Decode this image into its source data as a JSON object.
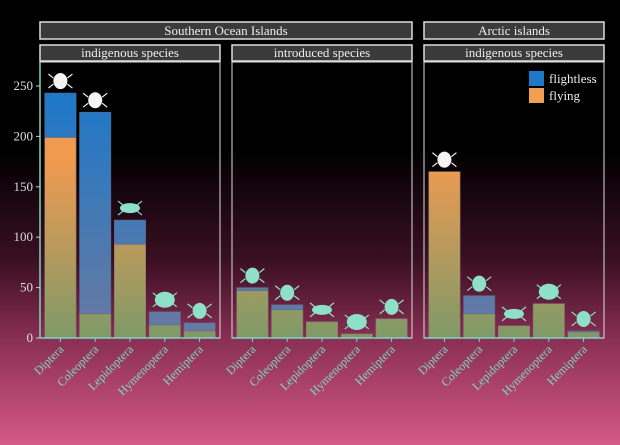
{
  "chart_data": {
    "type": "bar",
    "stacked": true,
    "ylim": [
      0,
      275
    ],
    "yticks": [
      0,
      50,
      100,
      150,
      200,
      250
    ],
    "categories": [
      "Diptera",
      "Coleoptera",
      "Lepidoptera",
      "Hymenoptera",
      "Hemiptera"
    ],
    "legend": {
      "placement": "top-right",
      "entries": [
        "flightless",
        "flying"
      ]
    },
    "colors": {
      "flightless": "#1f78c8",
      "flying": "#f0a050",
      "axis": "#7fd6c0",
      "strip_bg": "#3a3a3a"
    },
    "groups": [
      {
        "label": "Southern Ocean Islands",
        "panels": [
          0,
          1
        ]
      },
      {
        "label": "Arctic islands",
        "panels": [
          2
        ]
      }
    ],
    "panels": [
      {
        "label": "indigenous species",
        "series": [
          {
            "name": "flying",
            "values": [
              199,
              24,
              93,
              13,
              7
            ]
          },
          {
            "name": "flightless",
            "values": [
              44,
              200,
              24,
              13,
              8
            ]
          }
        ]
      },
      {
        "label": "introduced species",
        "series": [
          {
            "name": "flying",
            "values": [
              47,
              28,
              16,
              4,
              19
            ]
          },
          {
            "name": "flightless",
            "values": [
              3,
              5,
              0,
              0,
              0
            ]
          }
        ]
      },
      {
        "label": "indigenous species",
        "series": [
          {
            "name": "flying",
            "values": [
              165,
              24,
              12,
              34,
              6
            ]
          },
          {
            "name": "flightless",
            "values": [
              0,
              18,
              0,
              0,
              1
            ]
          }
        ]
      }
    ]
  }
}
